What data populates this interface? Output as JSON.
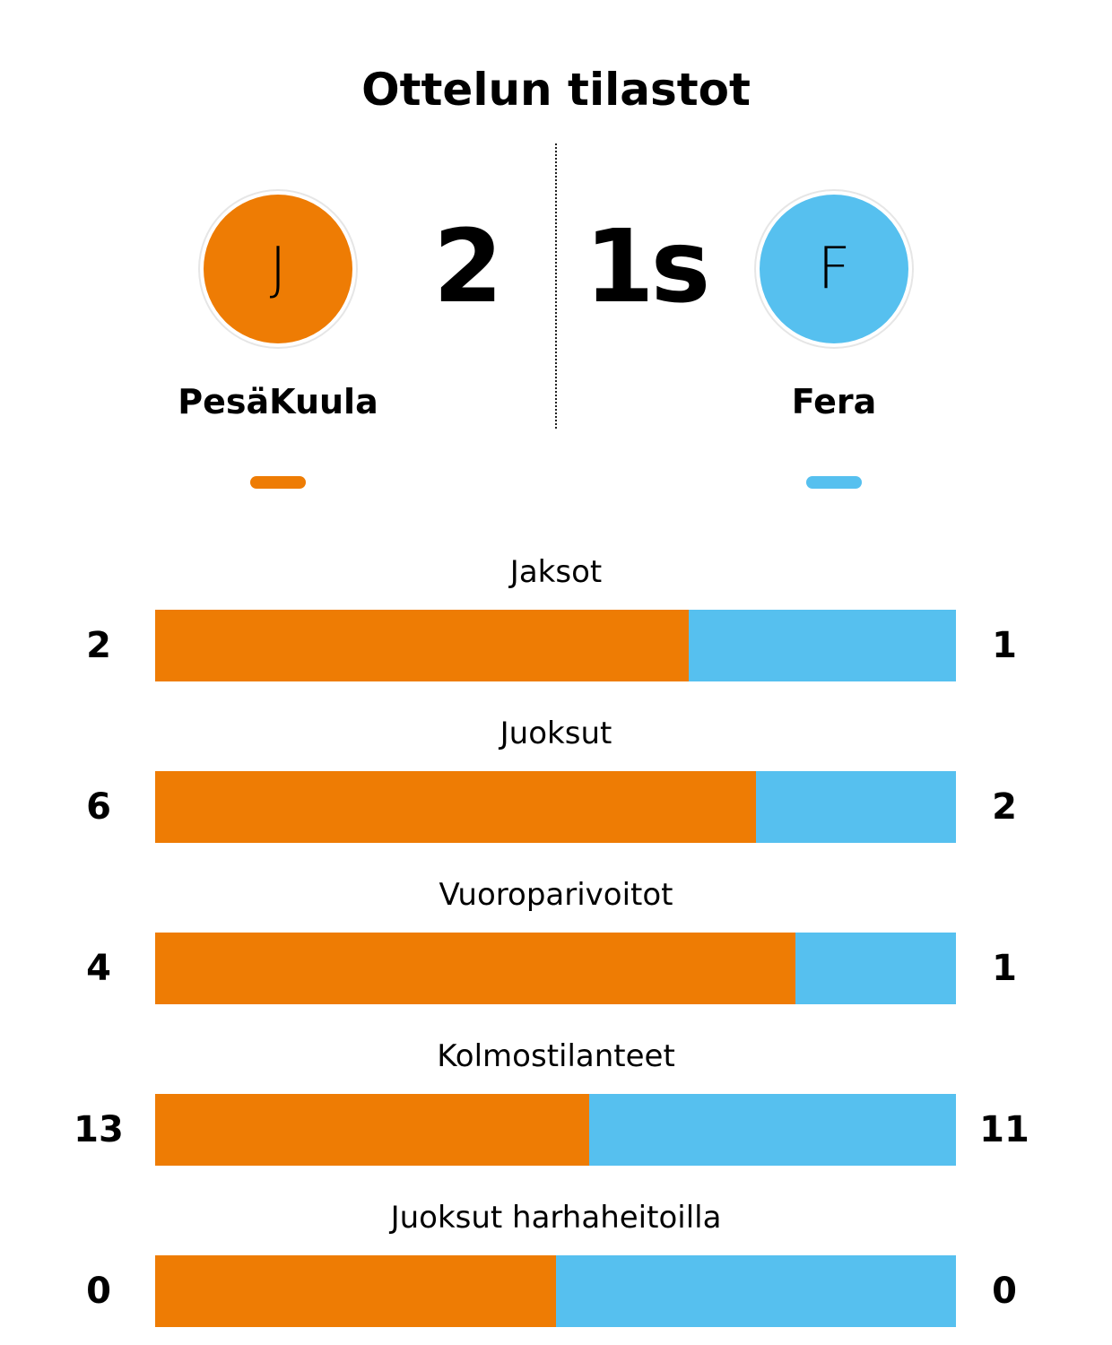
{
  "title": "Ottelun tilastot",
  "colors": {
    "home": "#ee7c04",
    "away": "#56c0ef"
  },
  "home": {
    "name": "PesäKuula",
    "logo_letter": "J",
    "score": "2"
  },
  "away": {
    "name": "Fera",
    "logo_letter": "F",
    "score": "1s"
  },
  "chart_data": {
    "type": "bar",
    "orientation": "horizontal-stacked-share",
    "title": "Ottelun tilastot",
    "series": [
      {
        "name": "PesäKuula",
        "color": "#ee7c04"
      },
      {
        "name": "Fera",
        "color": "#56c0ef"
      }
    ],
    "categories": [
      "Jaksot",
      "Juoksut",
      "Vuoroparivoitot",
      "Kolmostilanteet",
      "Juoksut harhaheitoilla"
    ],
    "rows": [
      {
        "label": "Jaksot",
        "home": 2,
        "away": 1
      },
      {
        "label": "Juoksut",
        "home": 6,
        "away": 2
      },
      {
        "label": "Vuoroparivoitot",
        "home": 4,
        "away": 1
      },
      {
        "label": "Kolmostilanteet",
        "home": 13,
        "away": 11
      },
      {
        "label": "Juoksut harhaheitoilla",
        "home": 0,
        "away": 0
      }
    ]
  }
}
